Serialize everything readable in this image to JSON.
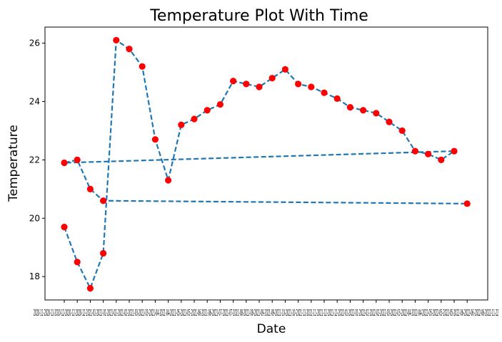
{
  "chart_data": {
    "type": "line",
    "title": "Temperature Plot With Time",
    "xlabel": "Date",
    "ylabel": "Temperature",
    "ylim": [
      17.2,
      26.55
    ],
    "y_ticks": [
      18,
      20,
      22,
      24,
      26
    ],
    "x_tick_labels": [
      "2020-11",
      "2020-11",
      "2020-12",
      "2020-12",
      "2020-12",
      "2021-01",
      "2021-01",
      "2021-02",
      "2021-02",
      "2021-03",
      "2021-03",
      "2021-04",
      "2021-04",
      "2021-05",
      "2021-05",
      "2021-06",
      "2021-06",
      "2021-07",
      "2021-07",
      "2021-08",
      "2021-08",
      "2021-09",
      "2021-09",
      "2021-10",
      "2021-10",
      "2021-11",
      "2021-11",
      "2021-12",
      "2021-12",
      "2022-01",
      "2022-01",
      "2022-02",
      "2022-02",
      "2022-03",
      "2022-03",
      "2022-04",
      "2022-04",
      "2022-05",
      "2022-05",
      "2022-05",
      "2022-06",
      "2022-06",
      "2022-06",
      "2022-11",
      "2022-11"
    ],
    "x_tick_text": "2020-11-2020-11-2020-12-2020-12-2020-12-2021-01-2021-01-2021-02-2021-02-2021-03-2021-03-2021-04-2021-04-2021-05-2021-05-2021-06-2021-06-2021-07-2021-07-2021-08-2021-08-2021-09-2021-09-2021-10-2021-10-2021-11-2021-11-2021-12-2021-12-2022-01-2022-01-2022-02-2022-02-2022-03-2022-03-2022-04-2022-04-2022-05-2022-05-2022-05-2022-06-2022-06-2022-06-2022-11-22",
    "series": [
      {
        "line_style": "dashed",
        "line_color": "#1f77b4",
        "marker_color": "#ff0000",
        "points": [
          {
            "x": 0,
            "y": 19.7
          },
          {
            "x": 1,
            "y": 18.5
          },
          {
            "x": 2,
            "y": 17.6
          },
          {
            "x": 3,
            "y": 18.8
          },
          {
            "x": 4,
            "y": 26.1
          },
          {
            "x": 5,
            "y": 25.8
          },
          {
            "x": 6,
            "y": 25.2
          },
          {
            "x": 7,
            "y": 22.7
          },
          {
            "x": 8,
            "y": 21.3
          },
          {
            "x": 9,
            "y": 23.2
          },
          {
            "x": 10,
            "y": 23.4
          },
          {
            "x": 11,
            "y": 23.7
          },
          {
            "x": 12,
            "y": 23.9
          },
          {
            "x": 13,
            "y": 24.7
          },
          {
            "x": 14,
            "y": 24.6
          },
          {
            "x": 15,
            "y": 24.5
          },
          {
            "x": 16,
            "y": 24.8
          },
          {
            "x": 17,
            "y": 25.1
          },
          {
            "x": 18,
            "y": 24.6
          },
          {
            "x": 19,
            "y": 24.5
          },
          {
            "x": 20,
            "y": 24.3
          },
          {
            "x": 21,
            "y": 24.1
          },
          {
            "x": 22,
            "y": 23.8
          },
          {
            "x": 23,
            "y": 23.7
          },
          {
            "x": 24,
            "y": 23.6
          },
          {
            "x": 25,
            "y": 23.3
          },
          {
            "x": 26,
            "y": 23.0
          },
          {
            "x": 27,
            "y": 22.3
          },
          {
            "x": 28,
            "y": 22.2
          },
          {
            "x": 29,
            "y": 22.0
          },
          {
            "x": 30,
            "y": 22.3
          },
          {
            "x": 0,
            "y": 21.9
          },
          {
            "x": 1,
            "y": 22.0
          },
          {
            "x": 2,
            "y": 21.0
          },
          {
            "x": 3,
            "y": 20.6
          },
          {
            "x": 31,
            "y": 20.5
          }
        ]
      }
    ]
  }
}
